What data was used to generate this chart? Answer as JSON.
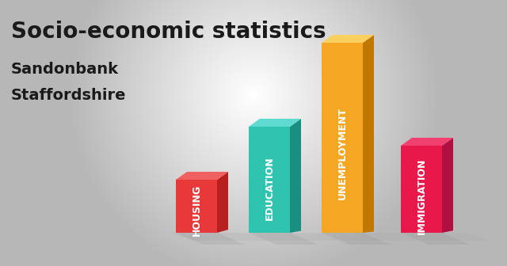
{
  "title": "Socio-economic statistics",
  "subtitle1": "Sandonbank",
  "subtitle2": "Staffordshire",
  "categories": [
    "HOUSING",
    "EDUCATION",
    "UNEMPLOYMENT",
    "IMMIGRATION"
  ],
  "values": [
    0.28,
    0.56,
    1.0,
    0.46
  ],
  "colors_front": [
    "#E8393A",
    "#2EC4B0",
    "#F5A623",
    "#E8194A"
  ],
  "colors_top": [
    "#F06060",
    "#5DDBD0",
    "#FAD060",
    "#F04070"
  ],
  "colors_side": [
    "#B82020",
    "#1A8F80",
    "#C07800",
    "#B01040"
  ],
  "shadow_color": "#CCCCCC",
  "bg_color_center": "#F0F0F0",
  "bg_color_edge": "#BBBBBB",
  "title_color": "#1A1A1A",
  "label_color": "#FFFFFF",
  "title_fontsize": 20,
  "subtitle_fontsize": 14,
  "label_fontsize": 9
}
